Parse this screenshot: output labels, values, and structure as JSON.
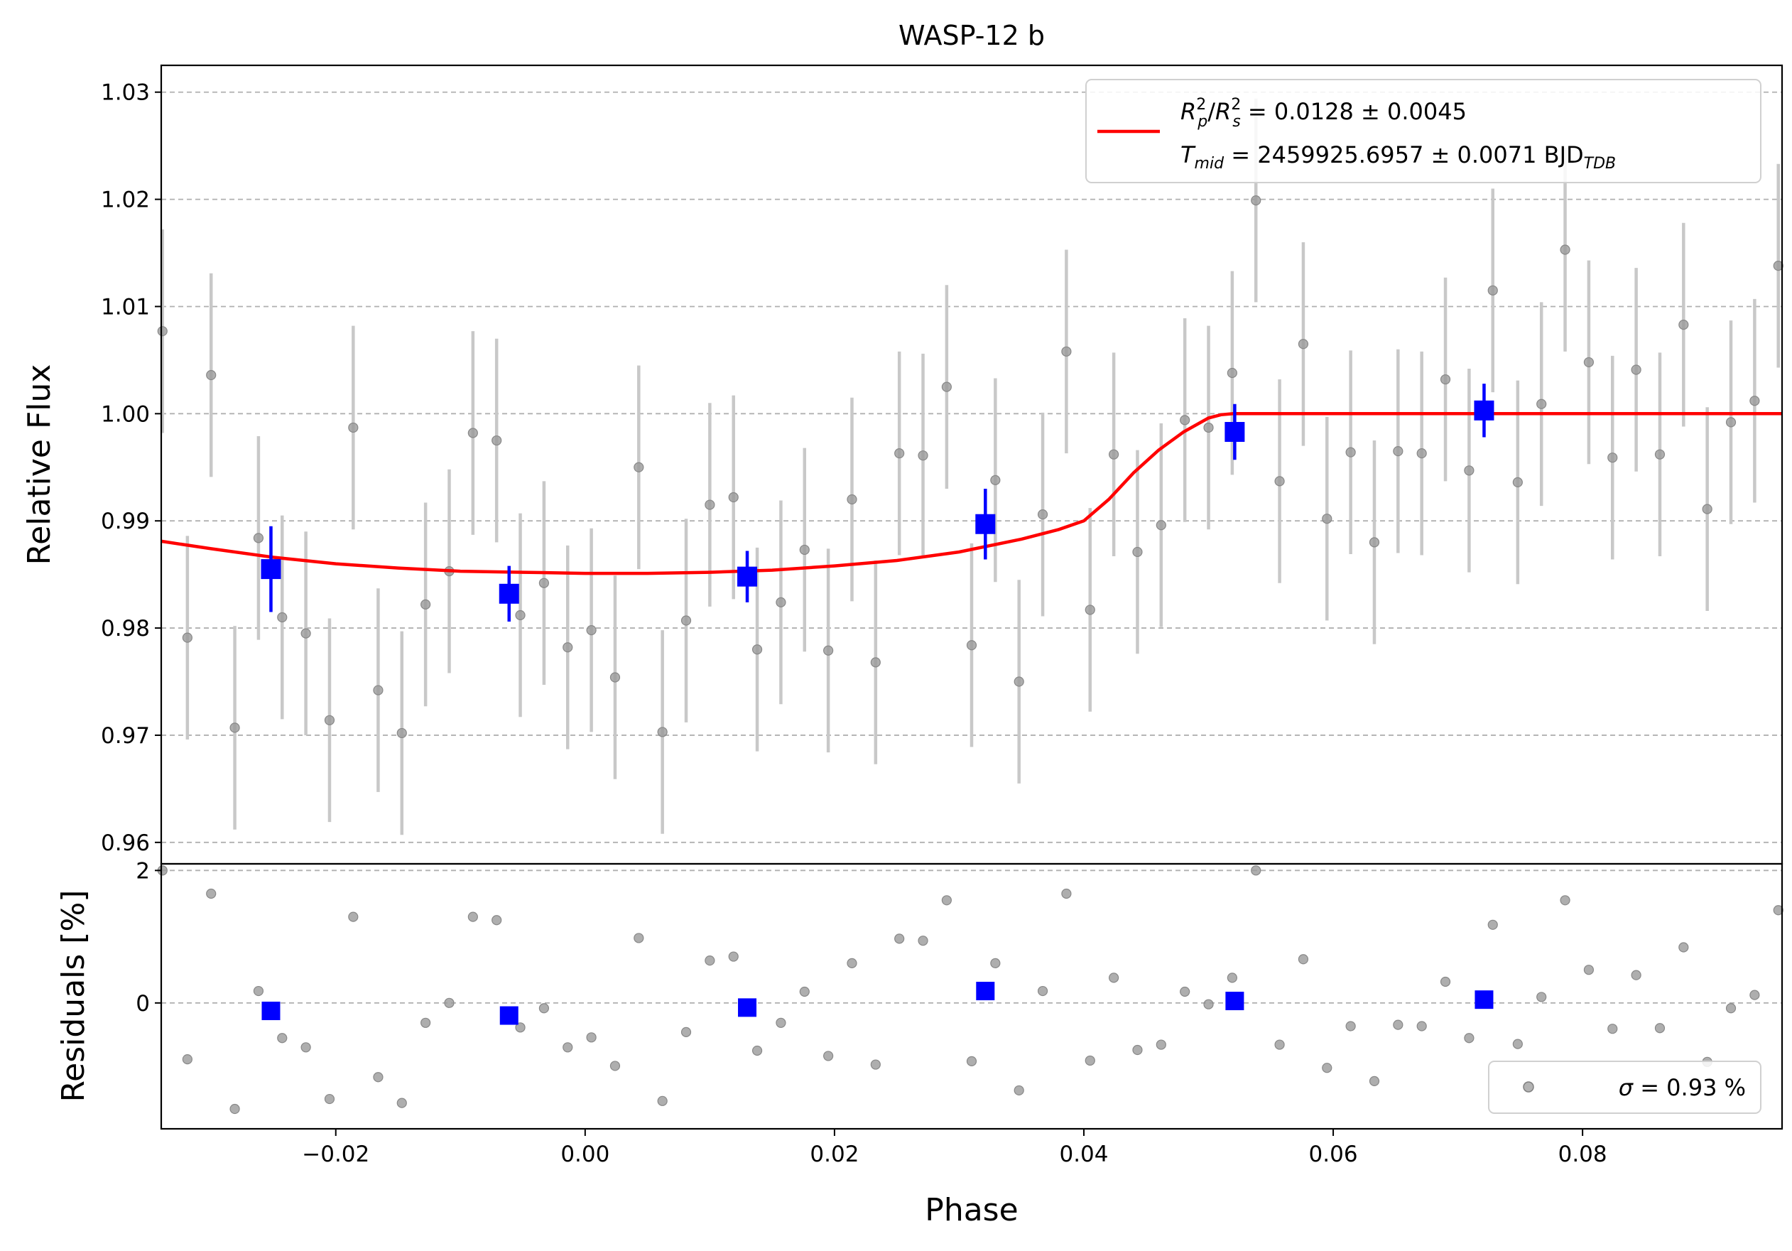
{
  "chart_data": {
    "type": "scatter",
    "title": "WASP-12 b",
    "xlabel": "Phase",
    "xlim": [
      -0.034,
      0.096
    ],
    "x_ticks": [
      -0.02,
      0.0,
      0.02,
      0.04,
      0.06,
      0.08
    ],
    "x_tick_labels": [
      "−0.02",
      "0.00",
      "0.02",
      "0.04",
      "0.06",
      "0.08"
    ],
    "grid": "horizontal dashed",
    "top_panel": {
      "ylabel": "Relative Flux",
      "ylim": [
        0.958,
        1.0325
      ],
      "y_ticks": [
        0.96,
        0.97,
        0.98,
        0.99,
        1.0,
        1.01,
        1.02,
        1.03
      ],
      "y_tick_labels": [
        "0.96",
        "0.97",
        "0.98",
        "0.99",
        "1.00",
        "1.01",
        "1.02",
        "1.03"
      ],
      "legend": {
        "placement": "upper right",
        "line1_main": "R",
        "line1_text": " = 0.0128 ± 0.0045",
        "line2_main": "T",
        "line2_sub": "mid",
        "line2_text": " = 2459925.6957 ± 0.0071 BJD",
        "line2_unit_sub": "TDB"
      },
      "raw_points": {
        "error": 0.0095,
        "x": [
          -0.0339,
          -0.0319,
          -0.03,
          -0.0281,
          -0.0262,
          -0.0243,
          -0.0224,
          -0.0205,
          -0.0186,
          -0.0166,
          -0.0147,
          -0.0128,
          -0.0109,
          -0.009,
          -0.0071,
          -0.0052,
          -0.0033,
          -0.0014,
          0.0005,
          0.0024,
          0.0043,
          0.0062,
          0.0081,
          0.01,
          0.0119,
          0.0138,
          0.0157,
          0.0176,
          0.0195,
          0.0214,
          0.0233,
          0.0252,
          0.0271,
          0.029,
          0.031,
          0.0329,
          0.0348,
          0.0367,
          0.0386,
          0.0405,
          0.0424,
          0.0443,
          0.0462,
          0.0481,
          0.05,
          0.0519,
          0.0538,
          0.0557,
          0.0576,
          0.0595,
          0.0614,
          0.0633,
          0.0652,
          0.0671,
          0.069,
          0.0709,
          0.0728,
          0.0748,
          0.0767,
          0.0786,
          0.0805,
          0.0824,
          0.0843,
          0.0862,
          0.0881,
          0.09,
          0.0919,
          0.0938,
          0.0957
        ],
        "y": [
          1.0077,
          0.9791,
          1.0036,
          0.9707,
          0.9884,
          0.981,
          0.9795,
          0.9714,
          0.9987,
          0.9742,
          0.9702,
          0.9822,
          0.9853,
          0.9982,
          0.9975,
          0.9812,
          0.9842,
          0.9782,
          0.9798,
          0.9754,
          0.995,
          0.9703,
          0.9807,
          0.9915,
          0.9922,
          0.978,
          0.9824,
          0.9873,
          0.9779,
          0.992,
          0.9768,
          0.9963,
          0.9961,
          1.0025,
          0.9784,
          0.9938,
          0.975,
          0.9906,
          1.0058,
          0.9817,
          0.9962,
          0.9871,
          0.9896,
          0.9994,
          0.9987,
          1.0038,
          1.0199,
          0.9937,
          1.0065,
          0.9902,
          0.9964,
          0.988,
          0.9965,
          0.9963,
          1.0032,
          0.9947,
          1.0115,
          0.9936,
          1.0009,
          1.0153,
          1.0048,
          0.9959,
          1.0041,
          0.9962,
          1.0083,
          0.9911,
          0.9992,
          1.0012,
          1.0138
        ]
      },
      "binned_points": {
        "x": [
          -0.0252,
          -0.0061,
          0.013,
          0.0321,
          0.0521,
          0.0721
        ],
        "y": [
          0.9855,
          0.9832,
          0.9848,
          0.9897,
          0.9983,
          1.0003
        ],
        "error": [
          0.004,
          0.0026,
          0.0024,
          0.0033,
          0.0026,
          0.0025
        ]
      },
      "model": {
        "x": [
          -0.034,
          -0.03,
          -0.025,
          -0.02,
          -0.015,
          -0.01,
          -0.005,
          0.0,
          0.005,
          0.01,
          0.015,
          0.02,
          0.025,
          0.03,
          0.035,
          0.038,
          0.04,
          0.042,
          0.044,
          0.046,
          0.048,
          0.05,
          0.051,
          0.052,
          0.053,
          0.054,
          0.06,
          0.07,
          0.08,
          0.09,
          0.096
        ],
        "y": [
          0.9881,
          0.9874,
          0.9866,
          0.986,
          0.9856,
          0.9853,
          0.9852,
          0.9851,
          0.9851,
          0.9852,
          0.9854,
          0.9858,
          0.9863,
          0.9871,
          0.9883,
          0.9892,
          0.99,
          0.992,
          0.9945,
          0.9966,
          0.9983,
          0.9996,
          0.9999,
          1.0,
          1.0,
          1.0,
          1.0,
          1.0,
          1.0,
          1.0,
          1.0
        ]
      }
    },
    "bottom_panel": {
      "ylabel": "Residuals [%]",
      "ylim": [
        -1.9,
        2.1
      ],
      "y_ticks": [
        0,
        2
      ],
      "y_tick_labels": [
        "0",
        "2"
      ],
      "legend": {
        "placement": "lower right",
        "text": " = 0.93 %",
        "symbol": "σ"
      },
      "raw_residuals": [
        2.0,
        -0.85,
        1.65,
        -1.6,
        0.18,
        -0.53,
        -0.67,
        -1.45,
        1.3,
        -1.12,
        -1.51,
        -0.3,
        0.0,
        1.3,
        1.25,
        -0.37,
        -0.08,
        -0.67,
        -0.52,
        -0.95,
        0.98,
        -1.48,
        -0.44,
        0.64,
        0.7,
        -0.72,
        -0.3,
        0.17,
        -0.8,
        0.6,
        -0.93,
        0.97,
        0.94,
        1.55,
        -0.88,
        0.6,
        -1.32,
        0.18,
        1.65,
        -0.87,
        0.38,
        -0.71,
        -0.63,
        0.17,
        -0.02,
        0.38,
        2.0,
        -0.63,
        0.66,
        -0.98,
        -0.35,
        -1.18,
        -0.33,
        -0.35,
        0.32,
        -0.53,
        1.18,
        -0.62,
        0.09,
        1.55,
        0.5,
        -0.39,
        0.42,
        -0.38,
        0.84,
        -0.89,
        -0.08,
        0.12,
        1.4
      ],
      "binned_residuals": [
        -0.12,
        -0.19,
        -0.07,
        0.18,
        0.03,
        0.05
      ]
    },
    "colors": {
      "raw_points": "#9a9a9a",
      "raw_errorbars": "#c8c8c8",
      "binned": "#0000ff",
      "model": "#ff0000",
      "grid": "#b0b0b0"
    }
  }
}
